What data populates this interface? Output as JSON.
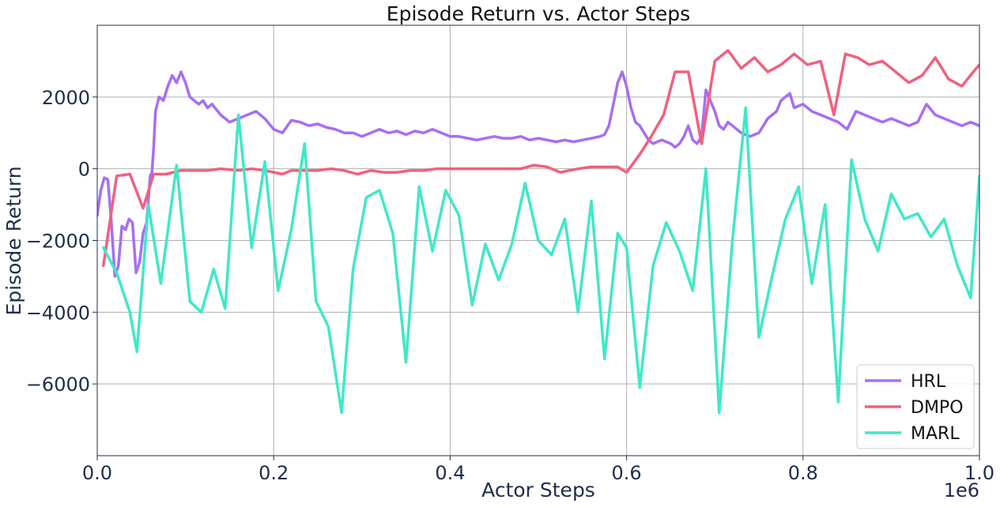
{
  "chart_data": {
    "type": "line",
    "title": "Episode Return vs. Actor Steps",
    "xlabel": "Actor Steps",
    "ylabel": "Episode Return",
    "x_scale_label": "1e6",
    "xlim": [
      0,
      1.0
    ],
    "ylim": [
      -8000,
      4000
    ],
    "x_ticks": [
      0.0,
      0.2,
      0.4,
      0.6,
      0.8,
      1.0
    ],
    "x_tick_labels": [
      "0.0",
      "0.2",
      "0.4",
      "0.6",
      "0.8",
      "1.0"
    ],
    "y_ticks": [
      -6000,
      -4000,
      -2000,
      0,
      2000
    ],
    "y_tick_labels": [
      "−6000",
      "−4000",
      "−2000",
      "0",
      "2000"
    ],
    "grid": true,
    "legend_position": "bottom-right",
    "series": [
      {
        "name": "HRL",
        "color": "#a66ef7",
        "x": [
          0.0,
          0.004,
          0.008,
          0.012,
          0.016,
          0.02,
          0.024,
          0.028,
          0.032,
          0.036,
          0.04,
          0.044,
          0.048,
          0.052,
          0.056,
          0.06,
          0.062,
          0.064,
          0.066,
          0.07,
          0.075,
          0.08,
          0.085,
          0.09,
          0.095,
          0.1,
          0.105,
          0.11,
          0.115,
          0.12,
          0.125,
          0.13,
          0.14,
          0.15,
          0.16,
          0.17,
          0.18,
          0.19,
          0.2,
          0.21,
          0.22,
          0.23,
          0.24,
          0.25,
          0.26,
          0.27,
          0.28,
          0.29,
          0.3,
          0.31,
          0.32,
          0.33,
          0.34,
          0.35,
          0.36,
          0.37,
          0.38,
          0.39,
          0.4,
          0.41,
          0.42,
          0.43,
          0.44,
          0.45,
          0.46,
          0.47,
          0.48,
          0.49,
          0.5,
          0.51,
          0.52,
          0.53,
          0.54,
          0.55,
          0.56,
          0.57,
          0.575,
          0.58,
          0.585,
          0.59,
          0.595,
          0.6,
          0.605,
          0.61,
          0.615,
          0.62,
          0.625,
          0.63,
          0.64,
          0.65,
          0.655,
          0.66,
          0.665,
          0.67,
          0.675,
          0.68,
          0.685,
          0.69,
          0.695,
          0.7,
          0.705,
          0.71,
          0.715,
          0.72,
          0.73,
          0.74,
          0.75,
          0.76,
          0.77,
          0.775,
          0.78,
          0.785,
          0.79,
          0.8,
          0.81,
          0.82,
          0.83,
          0.84,
          0.85,
          0.86,
          0.87,
          0.88,
          0.89,
          0.9,
          0.91,
          0.92,
          0.93,
          0.94,
          0.95,
          0.96,
          0.97,
          0.98,
          0.99,
          1.0
        ],
        "y": [
          -1300,
          -600,
          -250,
          -300,
          -1500,
          -3000,
          -2700,
          -1600,
          -1700,
          -1400,
          -1500,
          -2900,
          -2600,
          -1800,
          -1500,
          -200,
          -100,
          600,
          1600,
          2000,
          1900,
          2300,
          2600,
          2400,
          2700,
          2400,
          2000,
          1900,
          1800,
          1900,
          1700,
          1800,
          1500,
          1300,
          1400,
          1500,
          1600,
          1400,
          1100,
          1000,
          1350,
          1300,
          1200,
          1250,
          1150,
          1100,
          1000,
          1000,
          900,
          1000,
          1100,
          1000,
          1050,
          950,
          1050,
          1000,
          1100,
          1000,
          900,
          900,
          850,
          800,
          850,
          900,
          850,
          850,
          900,
          800,
          850,
          800,
          750,
          800,
          750,
          800,
          850,
          900,
          950,
          1200,
          1800,
          2400,
          2700,
          2300,
          1700,
          1300,
          1200,
          1000,
          800,
          700,
          800,
          700,
          600,
          700,
          900,
          1200,
          800,
          700,
          900,
          2200,
          1900,
          1600,
          1200,
          1100,
          1300,
          1200,
          1000,
          900,
          1000,
          1400,
          1600,
          1900,
          2000,
          2100,
          1700,
          1800,
          1600,
          1500,
          1400,
          1300,
          1100,
          1600,
          1500,
          1400,
          1300,
          1400,
          1300,
          1200,
          1300,
          1800,
          1500,
          1400,
          1300,
          1200,
          1300,
          1200
        ]
      },
      {
        "name": "DMPO",
        "color": "#f2607e",
        "x": [
          0.007,
          0.022,
          0.037,
          0.052,
          0.064,
          0.078,
          0.095,
          0.11,
          0.125,
          0.14,
          0.16,
          0.175,
          0.19,
          0.21,
          0.22,
          0.235,
          0.25,
          0.265,
          0.28,
          0.295,
          0.31,
          0.325,
          0.34,
          0.355,
          0.37,
          0.385,
          0.4,
          0.415,
          0.43,
          0.445,
          0.46,
          0.48,
          0.495,
          0.51,
          0.525,
          0.545,
          0.56,
          0.575,
          0.59,
          0.6,
          0.615,
          0.628,
          0.642,
          0.655,
          0.67,
          0.685,
          0.7,
          0.715,
          0.73,
          0.745,
          0.76,
          0.775,
          0.79,
          0.805,
          0.82,
          0.835,
          0.848,
          0.862,
          0.875,
          0.89,
          0.905,
          0.92,
          0.935,
          0.95,
          0.965,
          0.98,
          0.993,
          1.0
        ],
        "y": [
          -2700,
          -200,
          -150,
          -1100,
          -150,
          -150,
          -50,
          -50,
          -50,
          0,
          -50,
          0,
          -50,
          -150,
          -50,
          -50,
          -50,
          0,
          -50,
          -150,
          -50,
          -100,
          -100,
          -50,
          -50,
          0,
          0,
          0,
          0,
          0,
          0,
          0,
          100,
          50,
          -100,
          0,
          50,
          50,
          50,
          -100,
          400,
          900,
          1500,
          2700,
          2700,
          700,
          3000,
          3300,
          2800,
          3100,
          2700,
          2900,
          3200,
          2900,
          3000,
          1500,
          3200,
          3100,
          2900,
          3000,
          2700,
          2400,
          2600,
          3100,
          2500,
          2300,
          2700,
          2900
        ]
      },
      {
        "name": "MARL",
        "color": "#40e8c8",
        "x": [
          0.007,
          0.022,
          0.037,
          0.045,
          0.058,
          0.072,
          0.09,
          0.105,
          0.118,
          0.132,
          0.145,
          0.16,
          0.175,
          0.19,
          0.205,
          0.22,
          0.235,
          0.248,
          0.262,
          0.277,
          0.29,
          0.305,
          0.32,
          0.335,
          0.35,
          0.365,
          0.38,
          0.395,
          0.41,
          0.425,
          0.44,
          0.455,
          0.47,
          0.485,
          0.5,
          0.515,
          0.53,
          0.545,
          0.56,
          0.575,
          0.59,
          0.6,
          0.615,
          0.63,
          0.645,
          0.66,
          0.675,
          0.69,
          0.705,
          0.72,
          0.735,
          0.75,
          0.765,
          0.78,
          0.795,
          0.81,
          0.825,
          0.84,
          0.855,
          0.87,
          0.885,
          0.9,
          0.915,
          0.93,
          0.945,
          0.96,
          0.975,
          0.99,
          1.0
        ],
        "y": [
          -2200,
          -2900,
          -4000,
          -5100,
          -1000,
          -3200,
          100,
          -3700,
          -4000,
          -2800,
          -3900,
          1500,
          -2200,
          200,
          -3400,
          -1700,
          700,
          -3700,
          -4400,
          -6800,
          -2800,
          -800,
          -600,
          -1800,
          -5400,
          -500,
          -2300,
          -600,
          -1300,
          -3800,
          -2100,
          -3100,
          -2100,
          -400,
          -2000,
          -2400,
          -1400,
          -4000,
          -900,
          -5300,
          -1800,
          -2200,
          -6100,
          -2700,
          -1500,
          -2300,
          -3400,
          0,
          -6800,
          -2000,
          1700,
          -4700,
          -3000,
          -1400,
          -500,
          -3200,
          -1000,
          -6500,
          250,
          -1400,
          -2300,
          -700,
          -1400,
          -1250,
          -1900,
          -1400,
          -2700,
          -3600,
          -200
        ]
      }
    ]
  }
}
